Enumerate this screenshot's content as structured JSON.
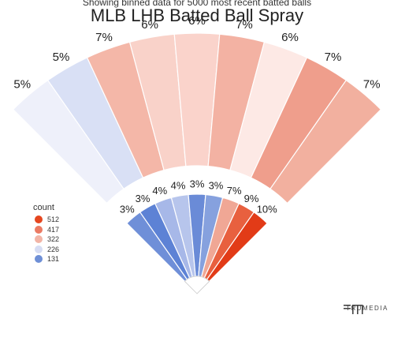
{
  "header": {
    "subtitle": "Showing binned data for 5000 most recent batted balls",
    "title": "MLB LHB Batted Ball Spray"
  },
  "legend": {
    "title": "count",
    "items": [
      {
        "label": "512",
        "color": "#e5461f"
      },
      {
        "label": "417",
        "color": "#eb7a63"
      },
      {
        "label": "322",
        "color": "#f2b4a6"
      },
      {
        "label": "226",
        "color": "#d6dcf3"
      },
      {
        "label": "131",
        "color": "#6e8fd6"
      }
    ]
  },
  "brand": {
    "name": "TRUMEDIA"
  },
  "chart_data": {
    "type": "spray",
    "outer_ring": [
      {
        "label": "5%",
        "color": "#eef0fa"
      },
      {
        "label": "5%",
        "color": "#d9e0f5"
      },
      {
        "label": "7%",
        "color": "#f4b7a8"
      },
      {
        "label": "6%",
        "color": "#f9d2c9"
      },
      {
        "label": "6%",
        "color": "#fad3cb"
      },
      {
        "label": "7%",
        "color": "#f3b2a3"
      },
      {
        "label": "6%",
        "color": "#fde9e5"
      },
      {
        "label": "7%",
        "color": "#ef9e8c"
      },
      {
        "label": "7%",
        "color": "#f2b09f"
      }
    ],
    "inner_ring": [
      {
        "label": "3%",
        "color": "#6f8fd8"
      },
      {
        "label": "3%",
        "color": "#5d82d5"
      },
      {
        "label": "4%",
        "color": "#a7b8e8"
      },
      {
        "label": "4%",
        "color": "#b7c5ec"
      },
      {
        "label": "3%",
        "color": "#6a8bd7"
      },
      {
        "label": "3%",
        "color": "#86a1de"
      },
      {
        "label": "7%",
        "color": "#f0a795"
      },
      {
        "label": "9%",
        "color": "#e8603f"
      },
      {
        "label": "10%",
        "color": "#e23b17"
      }
    ]
  }
}
